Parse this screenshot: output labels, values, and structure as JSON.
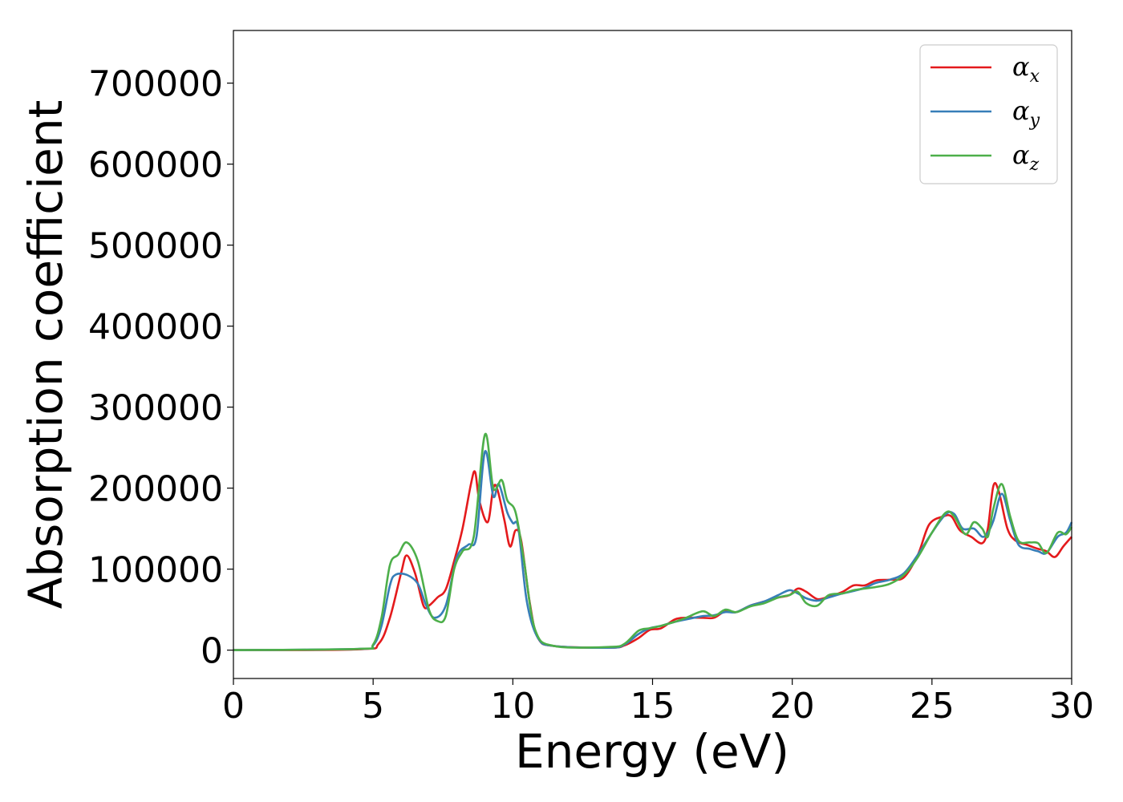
{
  "chart_data": {
    "type": "line",
    "title": "",
    "xlabel": "Energy (eV)",
    "ylabel": "Absorption coefficient",
    "xlim": [
      0,
      30
    ],
    "ylim": [
      -35000,
      765000
    ],
    "xticks": [
      0,
      5,
      10,
      15,
      20,
      25,
      30
    ],
    "xtick_labels": [
      "0",
      "5",
      "10",
      "15",
      "20",
      "25",
      "30"
    ],
    "yticks": [
      0,
      100000,
      200000,
      300000,
      400000,
      500000,
      600000,
      700000
    ],
    "ytick_labels": [
      "0",
      "100000",
      "200000",
      "300000",
      "400000",
      "500000",
      "600000",
      "700000"
    ],
    "grid": false,
    "legend_position": "top-right",
    "series": [
      {
        "name": "α_x",
        "legend_main": "α",
        "legend_sub": "x",
        "color": "#e41a1c",
        "points": [
          [
            0,
            0
          ],
          [
            4.5,
            1000
          ],
          [
            5.2,
            8000
          ],
          [
            5.6,
            40000
          ],
          [
            6.0,
            95000
          ],
          [
            6.2,
            117000
          ],
          [
            6.5,
            95000
          ],
          [
            6.8,
            55000
          ],
          [
            7.0,
            55000
          ],
          [
            7.3,
            65000
          ],
          [
            7.6,
            75000
          ],
          [
            7.9,
            110000
          ],
          [
            8.2,
            150000
          ],
          [
            8.5,
            205000
          ],
          [
            8.65,
            220000
          ],
          [
            8.8,
            185000
          ],
          [
            9.1,
            158000
          ],
          [
            9.3,
            200000
          ],
          [
            9.45,
            198000
          ],
          [
            9.7,
            160000
          ],
          [
            9.9,
            128000
          ],
          [
            10.1,
            148000
          ],
          [
            10.3,
            135000
          ],
          [
            10.6,
            60000
          ],
          [
            10.9,
            15000
          ],
          [
            11.5,
            5000
          ],
          [
            13.5,
            3000
          ],
          [
            14.0,
            6000
          ],
          [
            14.5,
            15000
          ],
          [
            14.9,
            25000
          ],
          [
            15.3,
            27000
          ],
          [
            15.8,
            38000
          ],
          [
            16.2,
            40000
          ],
          [
            16.8,
            40000
          ],
          [
            17.2,
            40000
          ],
          [
            17.6,
            48000
          ],
          [
            18.0,
            47000
          ],
          [
            18.5,
            55000
          ],
          [
            19.0,
            60000
          ],
          [
            19.5,
            65000
          ],
          [
            19.9,
            68000
          ],
          [
            20.2,
            76000
          ],
          [
            20.5,
            72000
          ],
          [
            20.9,
            63000
          ],
          [
            21.3,
            66000
          ],
          [
            21.8,
            72000
          ],
          [
            22.2,
            80000
          ],
          [
            22.6,
            80000
          ],
          [
            23.0,
            86000
          ],
          [
            23.5,
            87000
          ],
          [
            24.0,
            90000
          ],
          [
            24.5,
            118000
          ],
          [
            24.9,
            155000
          ],
          [
            25.4,
            165000
          ],
          [
            25.7,
            165000
          ],
          [
            26.0,
            148000
          ],
          [
            26.4,
            140000
          ],
          [
            26.8,
            132000
          ],
          [
            27.0,
            150000
          ],
          [
            27.2,
            203000
          ],
          [
            27.4,
            195000
          ],
          [
            27.7,
            150000
          ],
          [
            28.0,
            135000
          ],
          [
            28.4,
            130000
          ],
          [
            28.8,
            125000
          ],
          [
            29.1,
            122000
          ],
          [
            29.4,
            115000
          ],
          [
            29.7,
            128000
          ],
          [
            30.0,
            140000
          ]
        ]
      },
      {
        "name": "α_y",
        "legend_main": "α",
        "legend_sub": "y",
        "color": "#377eb8",
        "points": [
          [
            0,
            0
          ],
          [
            4.5,
            1500
          ],
          [
            5.0,
            6000
          ],
          [
            5.3,
            30000
          ],
          [
            5.6,
            80000
          ],
          [
            5.8,
            93000
          ],
          [
            6.2,
            93000
          ],
          [
            6.6,
            82000
          ],
          [
            6.9,
            55000
          ],
          [
            7.2,
            40000
          ],
          [
            7.6,
            55000
          ],
          [
            8.0,
            115000
          ],
          [
            8.4,
            130000
          ],
          [
            8.7,
            140000
          ],
          [
            9.0,
            245000
          ],
          [
            9.3,
            190000
          ],
          [
            9.5,
            205000
          ],
          [
            9.8,
            170000
          ],
          [
            10.0,
            157000
          ],
          [
            10.2,
            150000
          ],
          [
            10.5,
            60000
          ],
          [
            10.9,
            15000
          ],
          [
            11.5,
            5000
          ],
          [
            13.5,
            3000
          ],
          [
            14.0,
            7000
          ],
          [
            14.5,
            20000
          ],
          [
            14.9,
            27000
          ],
          [
            15.3,
            30000
          ],
          [
            15.8,
            35000
          ],
          [
            16.2,
            38000
          ],
          [
            16.8,
            42000
          ],
          [
            17.2,
            43000
          ],
          [
            17.6,
            47000
          ],
          [
            18.0,
            47000
          ],
          [
            18.5,
            55000
          ],
          [
            19.0,
            60000
          ],
          [
            19.5,
            68000
          ],
          [
            19.9,
            74000
          ],
          [
            20.2,
            70000
          ],
          [
            20.5,
            64000
          ],
          [
            20.9,
            61000
          ],
          [
            21.3,
            65000
          ],
          [
            21.8,
            70000
          ],
          [
            22.2,
            73000
          ],
          [
            22.6,
            77000
          ],
          [
            23.0,
            83000
          ],
          [
            23.5,
            87000
          ],
          [
            24.0,
            95000
          ],
          [
            24.5,
            118000
          ],
          [
            25.0,
            145000
          ],
          [
            25.5,
            168000
          ],
          [
            25.8,
            168000
          ],
          [
            26.1,
            150000
          ],
          [
            26.5,
            150000
          ],
          [
            26.8,
            140000
          ],
          [
            27.0,
            145000
          ],
          [
            27.2,
            160000
          ],
          [
            27.5,
            193000
          ],
          [
            27.8,
            160000
          ],
          [
            28.1,
            130000
          ],
          [
            28.5,
            125000
          ],
          [
            28.8,
            122000
          ],
          [
            29.1,
            120000
          ],
          [
            29.5,
            140000
          ],
          [
            29.8,
            145000
          ],
          [
            30.0,
            158000
          ]
        ]
      },
      {
        "name": "α_z",
        "legend_main": "α",
        "legend_sub": "z",
        "color": "#4daf4a",
        "points": [
          [
            0,
            0
          ],
          [
            4.5,
            1500
          ],
          [
            5.0,
            7000
          ],
          [
            5.3,
            40000
          ],
          [
            5.6,
            105000
          ],
          [
            5.9,
            118000
          ],
          [
            6.2,
            133000
          ],
          [
            6.6,
            110000
          ],
          [
            7.0,
            50000
          ],
          [
            7.3,
            36000
          ],
          [
            7.6,
            42000
          ],
          [
            7.9,
            100000
          ],
          [
            8.2,
            122000
          ],
          [
            8.6,
            140000
          ],
          [
            9.0,
            266000
          ],
          [
            9.3,
            200000
          ],
          [
            9.6,
            210000
          ],
          [
            9.8,
            185000
          ],
          [
            10.1,
            170000
          ],
          [
            10.4,
            110000
          ],
          [
            10.8,
            25000
          ],
          [
            11.5,
            5000
          ],
          [
            13.5,
            4000
          ],
          [
            14.0,
            8000
          ],
          [
            14.5,
            24000
          ],
          [
            14.9,
            27000
          ],
          [
            15.3,
            30000
          ],
          [
            15.8,
            35000
          ],
          [
            16.2,
            40000
          ],
          [
            16.8,
            48000
          ],
          [
            17.2,
            42000
          ],
          [
            17.6,
            50000
          ],
          [
            18.0,
            47000
          ],
          [
            18.5,
            54000
          ],
          [
            19.0,
            58000
          ],
          [
            19.5,
            65000
          ],
          [
            19.9,
            68000
          ],
          [
            20.2,
            72000
          ],
          [
            20.5,
            58000
          ],
          [
            20.9,
            55000
          ],
          [
            21.3,
            68000
          ],
          [
            21.8,
            70000
          ],
          [
            22.2,
            74000
          ],
          [
            22.6,
            76000
          ],
          [
            23.0,
            78000
          ],
          [
            23.5,
            82000
          ],
          [
            24.0,
            93000
          ],
          [
            24.5,
            115000
          ],
          [
            25.0,
            145000
          ],
          [
            25.5,
            170000
          ],
          [
            25.8,
            165000
          ],
          [
            26.2,
            143000
          ],
          [
            26.5,
            158000
          ],
          [
            26.8,
            150000
          ],
          [
            27.0,
            140000
          ],
          [
            27.2,
            175000
          ],
          [
            27.5,
            205000
          ],
          [
            27.8,
            165000
          ],
          [
            28.1,
            135000
          ],
          [
            28.5,
            133000
          ],
          [
            28.8,
            132000
          ],
          [
            29.1,
            120000
          ],
          [
            29.5,
            145000
          ],
          [
            29.8,
            143000
          ],
          [
            30.0,
            152000
          ]
        ]
      }
    ]
  }
}
